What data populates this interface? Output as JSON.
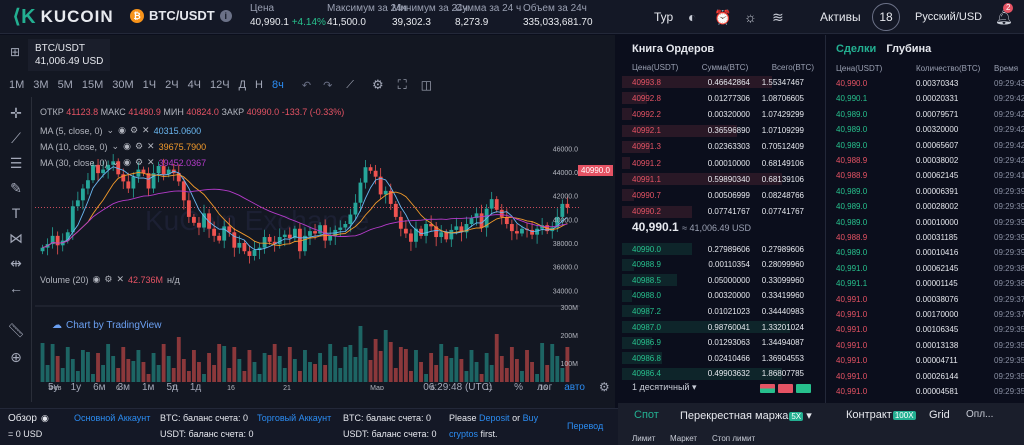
{
  "header": {
    "logo": "KUCOIN",
    "pair": "BTC/USDT",
    "stats": [
      {
        "label": "Цена",
        "value": "40,990.1",
        "change": "+4.14%"
      },
      {
        "label": "Максимум за 24ч",
        "value": "41,500.0"
      },
      {
        "label": "Минимум за 24ч",
        "value": "39,302.3"
      },
      {
        "label": "Сумма за 24 ч",
        "value": "8,273.9"
      },
      {
        "label": "Объем за 24ч",
        "value": "335,033,681.70"
      }
    ],
    "tour": "Тур",
    "assets": "Активы",
    "avatar": "18",
    "language": "Русский/USD",
    "notif_count": "2"
  },
  "chart": {
    "symbol": "BTC/USDT",
    "symbol_price": "41,006.49 USD",
    "timeframes": [
      "1М",
      "3М",
      "5М",
      "15М",
      "30М",
      "1Ч",
      "2Ч",
      "4Ч",
      "12Ч",
      "Д",
      "Н",
      "8ч"
    ],
    "active_timeframe": "8ч",
    "ohlc": {
      "open_l": "ОТКР",
      "open": "41123.8",
      "high_l": "МАКС",
      "high": "41480.9",
      "low_l": "МИН",
      "low": "40824.0",
      "close_l": "ЗАКР",
      "close": "40990.0",
      "change": "-133.7 (-0.33%)"
    },
    "indicators": [
      {
        "label": "MA (5, close, 0)",
        "value": "40315.0600",
        "color": "#6bb8f2"
      },
      {
        "label": "MA (10, close, 0)",
        "value": "39675.7900",
        "color": "#f29a2b"
      },
      {
        "label": "MA (30, close, 0)",
        "value": "39452.0367",
        "color": "#b43bc9"
      }
    ],
    "volume_label": "Volume (20)",
    "volume_value": "42.736M",
    "volume_na": "н/д",
    "current_price_tag": "40990.0",
    "watermark": "KuCoin Exchange",
    "tv_brand": "Chart by TradingView",
    "x_labels": [
      "Фев",
      "6",
      "11",
      "16",
      "21",
      "Мар",
      "6",
      "11",
      "16"
    ],
    "y_labels": [
      "46000.0",
      "44000.0",
      "42000.0",
      "40000.0",
      "38000.0",
      "36000.0",
      "34000.0"
    ],
    "vol_y_labels": [
      "300M",
      "200M",
      "100M"
    ],
    "ranges": [
      "5у",
      "1у",
      "6м",
      "3м",
      "1м",
      "5д",
      "1д"
    ],
    "time": "06:29:48 (UTC)",
    "pct": "%",
    "log": "лог",
    "auto": "авто"
  },
  "chart_data": {
    "type": "candlestick",
    "title": "BTC/USDT",
    "ylim": [
      34000,
      46000
    ],
    "x_labels": [
      "Фев",
      "6",
      "11",
      "16",
      "21",
      "Мар",
      "6",
      "11",
      "16"
    ],
    "closes": [
      37600,
      37900,
      38600,
      37800,
      38200,
      38900,
      41100,
      41600,
      42600,
      43300,
      44600,
      43900,
      44200,
      44600,
      44900,
      43800,
      43200,
      42600,
      43600,
      44200,
      43900,
      42600,
      43900,
      44500,
      43800,
      44200,
      43900,
      43200,
      41600,
      40200,
      39700,
      39300,
      40500,
      39200,
      38600,
      38200,
      39400,
      38900,
      37600,
      38000,
      37300,
      36900,
      37400,
      37600,
      38500,
      38100,
      37900,
      38500,
      38700,
      38400,
      39200,
      37300,
      38600,
      39000,
      38800,
      39500,
      38200,
      38600,
      39100,
      39300,
      39600,
      40400,
      41400,
      43100,
      44400,
      44100,
      43600,
      42100,
      42400,
      41300,
      40200,
      39200,
      38800,
      38100,
      39200,
      38600,
      39600,
      39400,
      38500,
      38900,
      38300,
      39100,
      39400,
      38900,
      39600,
      40100,
      40500,
      39300,
      40900,
      41700,
      40800,
      40200,
      39600,
      39000,
      38800,
      39200,
      39100,
      38700,
      39200,
      39500,
      39000,
      39300,
      40200,
      41300,
      40990
    ],
    "volume_max_label": "300M"
  },
  "orderbook": {
    "title": "Книга Ордеров",
    "headers": [
      "Цена(USDT)",
      "Сумма(BTC)",
      "Всего(BTC)"
    ],
    "asks": [
      {
        "p": "40993.8",
        "a": "0.46642864",
        "t": "1.55347467"
      },
      {
        "p": "40992.8",
        "a": "0.01277306",
        "t": "1.08706605"
      },
      {
        "p": "40992.2",
        "a": "0.00320000",
        "t": "1.07429299"
      },
      {
        "p": "40992.1",
        "a": "0.36596890",
        "t": "1.07109299"
      },
      {
        "p": "40991.3",
        "a": "0.02363303",
        "t": "0.70512409"
      },
      {
        "p": "40991.2",
        "a": "0.00010000",
        "t": "0.68149106"
      },
      {
        "p": "40991.1",
        "a": "0.59890340",
        "t": "0.68139106"
      },
      {
        "p": "40990.7",
        "a": "0.00506999",
        "t": "0.08248766"
      },
      {
        "p": "40990.2",
        "a": "0.07741767",
        "t": "0.07741767"
      }
    ],
    "mid_price": "40,990.1",
    "mid_usd": "≈ 41,006.49 USD",
    "bids": [
      {
        "p": "40990.0",
        "a": "0.27989606",
        "t": "0.27989606"
      },
      {
        "p": "40988.9",
        "a": "0.00110354",
        "t": "0.28099960"
      },
      {
        "p": "40988.5",
        "a": "0.05000000",
        "t": "0.33099960"
      },
      {
        "p": "40988.0",
        "a": "0.00320000",
        "t": "0.33419960"
      },
      {
        "p": "40987.2",
        "a": "0.01021023",
        "t": "0.34440983"
      },
      {
        "p": "40987.0",
        "a": "0.98760041",
        "t": "1.33201024"
      },
      {
        "p": "40986.9",
        "a": "0.01293063",
        "t": "1.34494087"
      },
      {
        "p": "40986.8",
        "a": "0.02410466",
        "t": "1.36904553"
      },
      {
        "p": "40986.4",
        "a": "0.49903632",
        "t": "1.86807785"
      }
    ],
    "precision": "1 десятичный"
  },
  "trades": {
    "tab_trades": "Сделки",
    "tab_depth": "Глубина",
    "headers": [
      "Цена(USDT)",
      "Количество(BTC)",
      "Время"
    ],
    "rows": [
      {
        "p": "40,990.0",
        "q": "0.00370343",
        "t": "09:29:43",
        "side": "sell"
      },
      {
        "p": "40,990.1",
        "q": "0.00020331",
        "t": "09:29:42",
        "side": "buy"
      },
      {
        "p": "40,989.0",
        "q": "0.00079571",
        "t": "09:29:42",
        "side": "buy"
      },
      {
        "p": "40,989.0",
        "q": "0.00320000",
        "t": "09:29:42",
        "side": "buy"
      },
      {
        "p": "40,989.0",
        "q": "0.00065607",
        "t": "09:29:42",
        "side": "buy"
      },
      {
        "p": "40,988.9",
        "q": "0.00038002",
        "t": "09:29:42",
        "side": "sell"
      },
      {
        "p": "40,988.9",
        "q": "0.00062145",
        "t": "09:29:41",
        "side": "sell"
      },
      {
        "p": "40,989.0",
        "q": "0.00006391",
        "t": "09:29:39",
        "side": "buy"
      },
      {
        "p": "40,989.0",
        "q": "0.00028002",
        "t": "09:29:39",
        "side": "buy"
      },
      {
        "p": "40,989.0",
        "q": "0.00010000",
        "t": "09:29:39",
        "side": "buy"
      },
      {
        "p": "40,988.9",
        "q": "0.00031185",
        "t": "09:29:39",
        "side": "sell"
      },
      {
        "p": "40,989.0",
        "q": "0.00010416",
        "t": "09:29:39",
        "side": "buy"
      },
      {
        "p": "40,991.0",
        "q": "0.00062145",
        "t": "09:29:38",
        "side": "buy"
      },
      {
        "p": "40,991.1",
        "q": "0.00001145",
        "t": "09:29:38",
        "side": "buy"
      },
      {
        "p": "40,991.0",
        "q": "0.00038076",
        "t": "09:29:37",
        "side": "sell"
      },
      {
        "p": "40,991.0",
        "q": "0.00170000",
        "t": "09:29:37",
        "side": "sell"
      },
      {
        "p": "40,991.0",
        "q": "0.00106345",
        "t": "09:29:35",
        "side": "sell"
      },
      {
        "p": "40,991.0",
        "q": "0.00013138",
        "t": "09:29:35",
        "side": "sell"
      },
      {
        "p": "40,991.0",
        "q": "0.00004711",
        "t": "09:29:35",
        "side": "sell"
      },
      {
        "p": "40,991.0",
        "q": "0.00026144",
        "t": "09:29:35",
        "side": "sell"
      },
      {
        "p": "40,991.0",
        "q": "0.00004581",
        "t": "09:29:35",
        "side": "sell"
      }
    ]
  },
  "bottom": {
    "overview": "Обзор",
    "balance": "= 0 USD",
    "main_account": "Основной Аккаунт",
    "trade_account": "Торговый Аккаунт",
    "btc_bal_1": "BTC: баланс счета: 0",
    "usdt_bal_1": "USDT: баланс счета: 0",
    "btc_bal_2": "BTC: баланс счета: 0",
    "usdt_bal_2": "USDT: баланс счета: 0",
    "please": "Please",
    "deposit": "Deposit",
    "or": "or",
    "buy": "Buy",
    "crypto": "cryptos",
    "first": "first.",
    "transfer": "Перевод"
  },
  "trade_panel": {
    "spot": "Спот",
    "cross": "Перекрестная маржа",
    "cross_badge": "5X",
    "contract": "Контракт",
    "contract_badge": "100X",
    "grid": "Grid",
    "more": "Опл...",
    "limit": "Лимит",
    "market": "Маркет",
    "stop_limit": "Стоп лимит"
  }
}
